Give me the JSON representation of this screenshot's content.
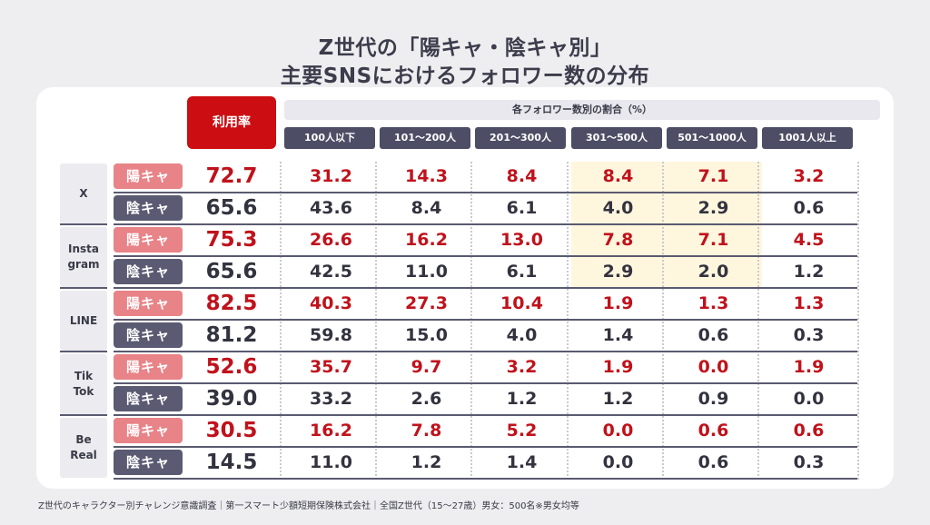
{
  "title_line1": "Z世代の「陽キャ・陰キャ別」",
  "title_line2": "主要SNSにおけるフォロワー数の分布",
  "footer": "Z世代のキャラクター別チャレンジ意識調査｜第一スマート少額短期保険株式会社｜全国Z世代（15〜27歳）男女：500名※男女均等",
  "colors": {
    "accent_red": "#cc0e12",
    "yokya_badge": "#e88387",
    "inkya_badge": "#5a5a72",
    "highlight": "#fff6de"
  },
  "chart_data": {
    "type": "table",
    "usage_header": "利用率",
    "group_header": "各フォロワー数別の割合（%）",
    "buckets": [
      "100人以下",
      "101〜200人",
      "201〜300人",
      "301〜500人",
      "501〜1000人",
      "1001人以上"
    ],
    "type_labels": {
      "yokya": "陽キャ",
      "inkya": "陰キャ"
    },
    "platforms": [
      {
        "name": "X",
        "yokya": {
          "usage": "72.7",
          "values": [
            "31.2",
            "14.3",
            "8.4",
            "8.4",
            "7.1",
            "3.2"
          ]
        },
        "inkya": {
          "usage": "65.6",
          "values": [
            "43.6",
            "8.4",
            "6.1",
            "4.0",
            "2.9",
            "0.6"
          ]
        }
      },
      {
        "name": "Insta\ngram",
        "yokya": {
          "usage": "75.3",
          "values": [
            "26.6",
            "16.2",
            "13.0",
            "7.8",
            "7.1",
            "4.5"
          ]
        },
        "inkya": {
          "usage": "65.6",
          "values": [
            "42.5",
            "11.0",
            "6.1",
            "2.9",
            "2.0",
            "1.2"
          ]
        }
      },
      {
        "name": "LINE",
        "yokya": {
          "usage": "82.5",
          "values": [
            "40.3",
            "27.3",
            "10.4",
            "1.9",
            "1.3",
            "1.3"
          ]
        },
        "inkya": {
          "usage": "81.2",
          "values": [
            "59.8",
            "15.0",
            "4.0",
            "1.4",
            "0.6",
            "0.3"
          ]
        }
      },
      {
        "name": "Tik\nTok",
        "yokya": {
          "usage": "52.6",
          "values": [
            "35.7",
            "9.7",
            "3.2",
            "1.9",
            "0.0",
            "1.9"
          ]
        },
        "inkya": {
          "usage": "39.0",
          "values": [
            "33.2",
            "2.6",
            "1.2",
            "1.2",
            "0.9",
            "0.0"
          ]
        }
      },
      {
        "name": "Be\nReal",
        "yokya": {
          "usage": "30.5",
          "values": [
            "16.2",
            "7.8",
            "5.2",
            "0.0",
            "0.6",
            "0.6"
          ]
        },
        "inkya": {
          "usage": "14.5",
          "values": [
            "11.0",
            "1.2",
            "1.4",
            "0.0",
            "0.6",
            "0.3"
          ]
        }
      }
    ]
  }
}
